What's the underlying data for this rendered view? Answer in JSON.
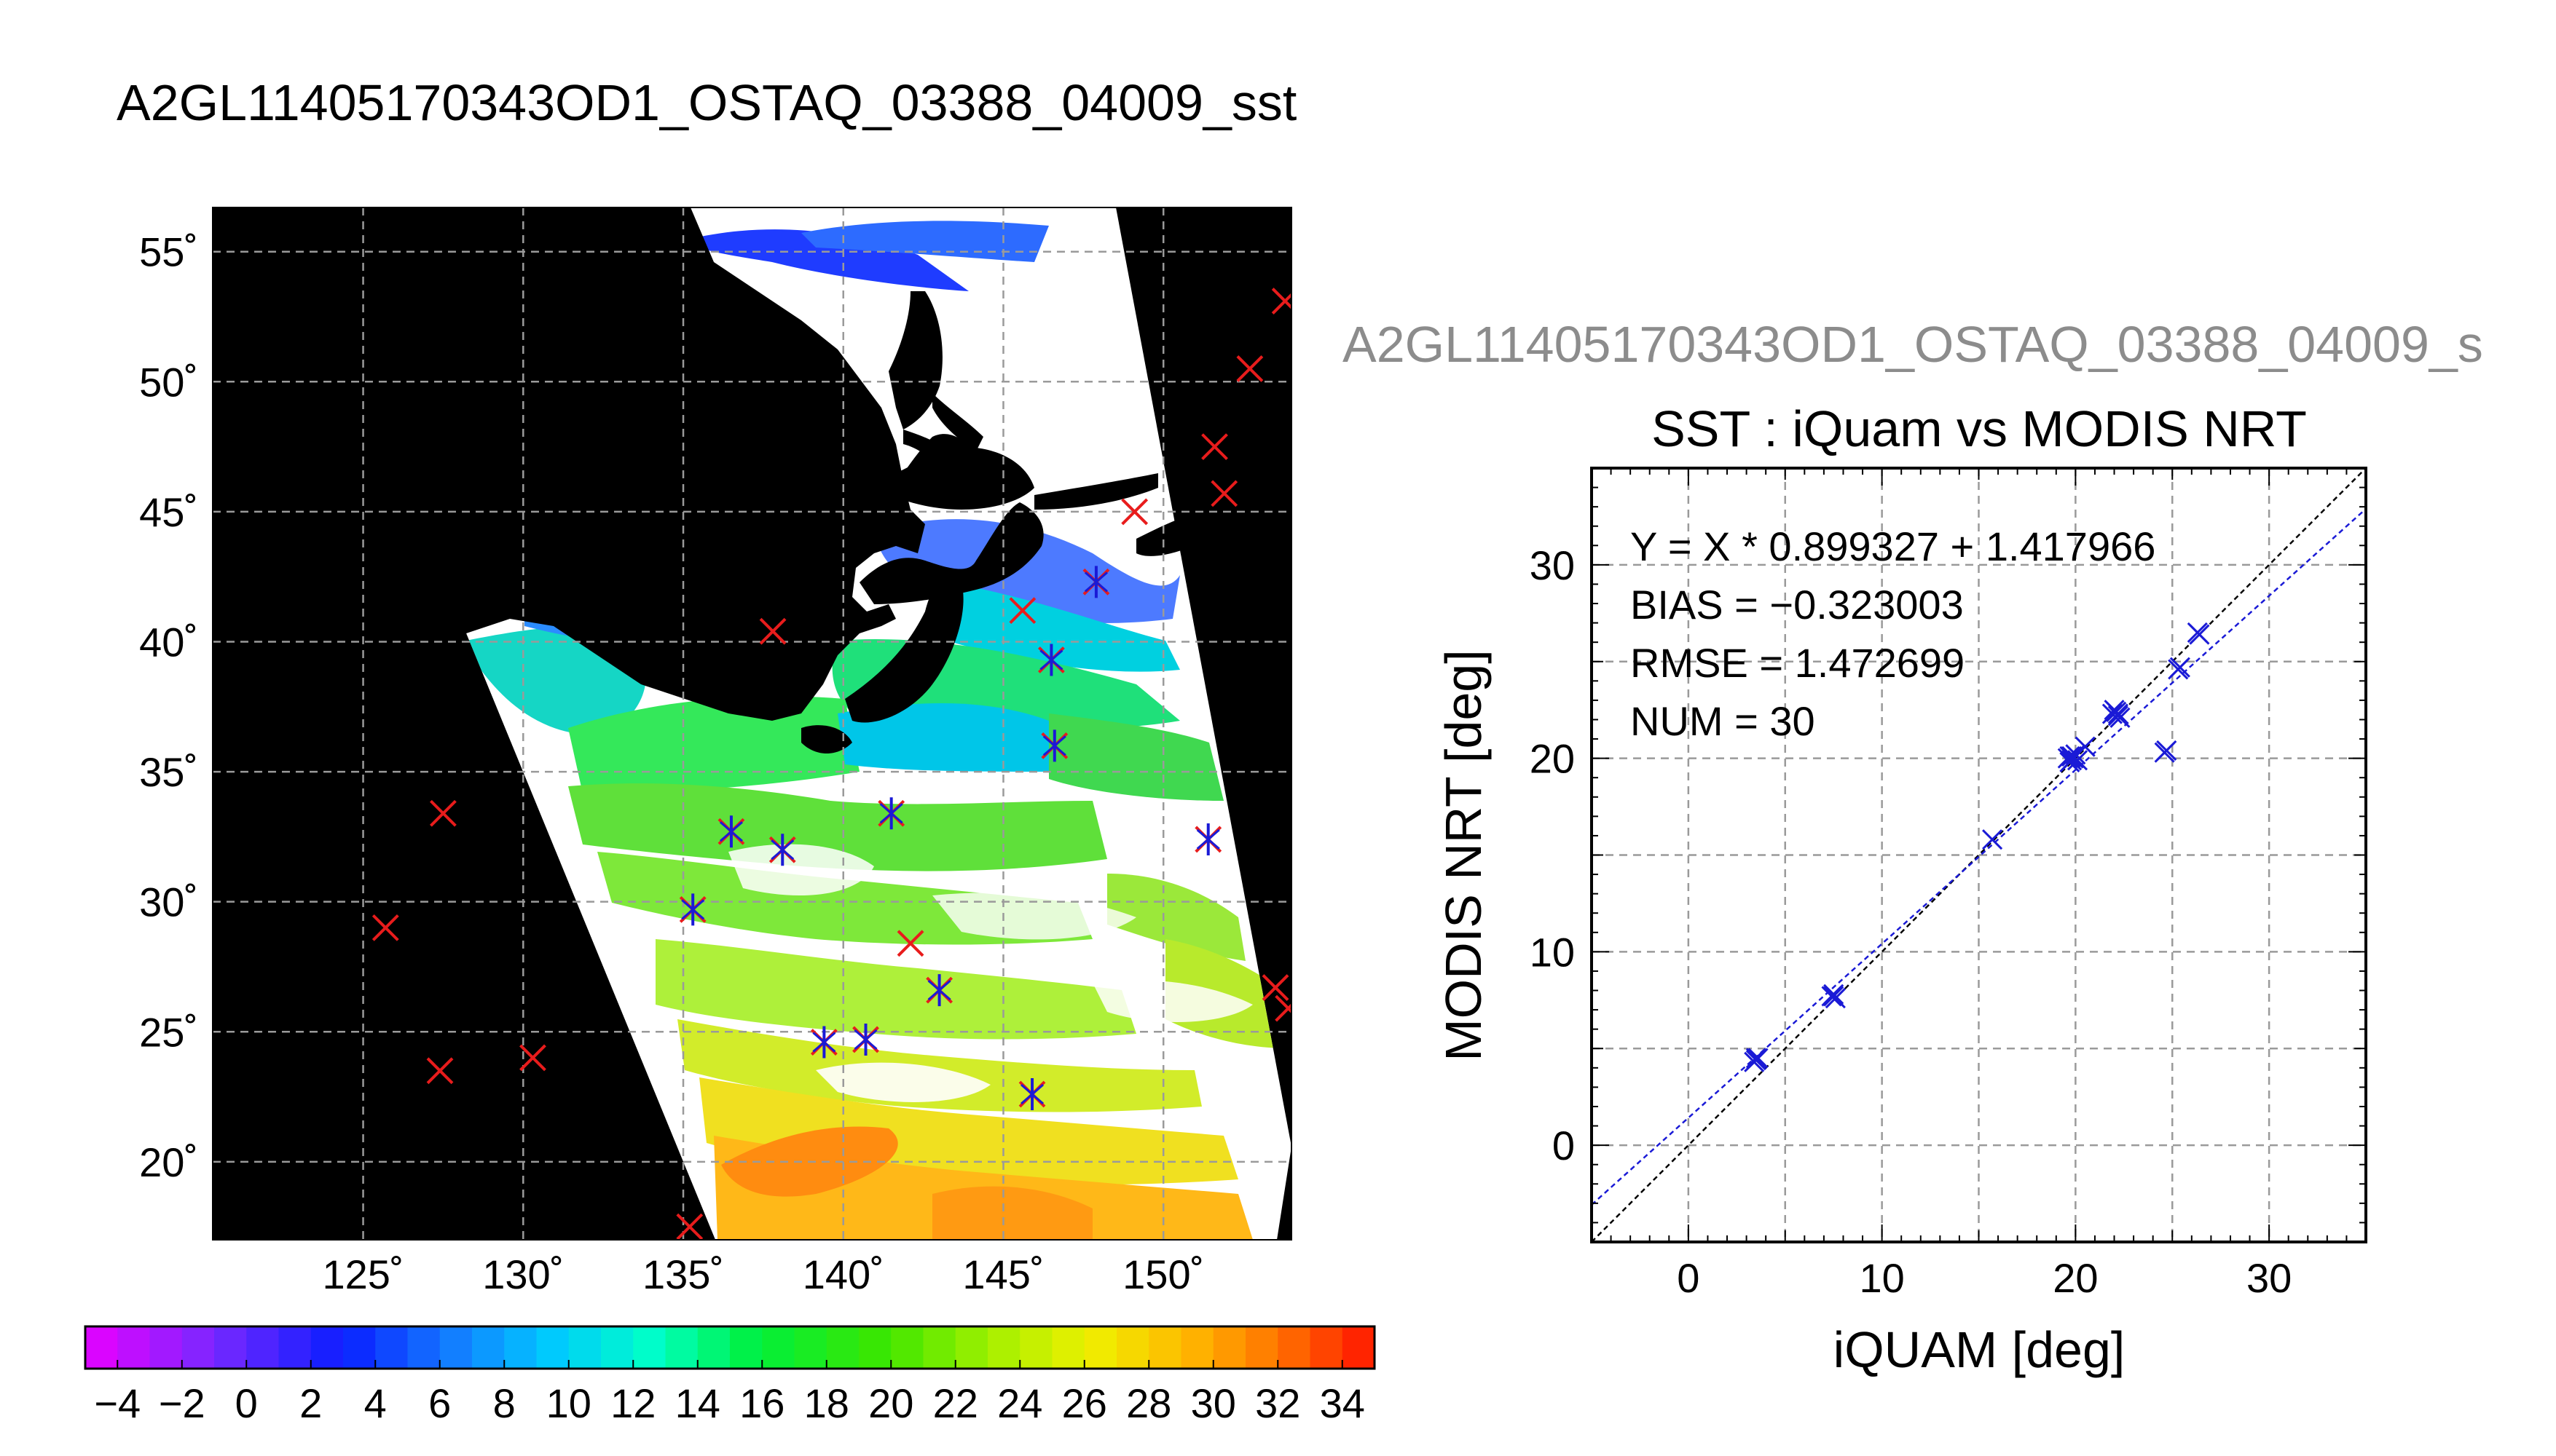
{
  "figure": {
    "title": "A2GL11405170343OD1_OSTAQ_03388_04009_sst",
    "subtitle_partial": "A2GL11405170343OD1_OSTAQ_03388_04009_s"
  },
  "colors": {
    "background": "#ffffff",
    "map_background": "#000000",
    "grid": "#9a9a9a",
    "marker_red": "#e81c1c",
    "marker_blue": "#1a1ad6",
    "fit_line": "#1a1ad6",
    "identity_line": "#000000",
    "subtitle_gray": "#8c8c8c"
  },
  "chart_data": [
    {
      "type": "map",
      "title": "",
      "lon_ticks": [
        "125˚",
        "130˚",
        "135˚",
        "140˚",
        "145˚",
        "150˚"
      ],
      "lat_ticks": [
        "20˚",
        "25˚",
        "30˚",
        "35˚",
        "40˚",
        "45˚",
        "50˚",
        "55˚"
      ],
      "lon_range": [
        120.3,
        154.0
      ],
      "lat_range": [
        17.0,
        56.7
      ],
      "grid": true,
      "iquam_only": [
        [
          125.7,
          29.0
        ],
        [
          127.5,
          33.4
        ],
        [
          127.4,
          23.5
        ],
        [
          130.3,
          24.0
        ],
        [
          135.2,
          17.5
        ],
        [
          137.8,
          40.4
        ],
        [
          142.1,
          28.4
        ],
        [
          145.6,
          41.2
        ],
        [
          149.1,
          45.0
        ],
        [
          151.6,
          47.5
        ],
        [
          151.9,
          45.7
        ],
        [
          152.7,
          50.5
        ],
        [
          153.8,
          53.1
        ],
        [
          153.5,
          26.7
        ],
        [
          153.9,
          25.9
        ]
      ],
      "matchups": [
        [
          135.3,
          29.7
        ],
        [
          136.5,
          32.7
        ],
        [
          138.1,
          32.0
        ],
        [
          139.4,
          24.6
        ],
        [
          140.7,
          24.7
        ],
        [
          141.5,
          33.4
        ],
        [
          143.0,
          26.6
        ],
        [
          145.9,
          22.6
        ],
        [
          146.5,
          39.3
        ],
        [
          146.6,
          36.0
        ],
        [
          147.9,
          42.3
        ],
        [
          151.4,
          32.4
        ]
      ]
    },
    {
      "type": "colorbar",
      "ticks": [
        "−4",
        "−2",
        "0",
        "2",
        "4",
        "6",
        "8",
        "10",
        "12",
        "14",
        "16",
        "18",
        "20",
        "22",
        "24",
        "26",
        "28",
        "30",
        "32",
        "34"
      ],
      "range": [
        -5,
        35
      ],
      "step": 2
    },
    {
      "type": "scatter",
      "title": "SST : iQuam vs MODIS NRT",
      "xlabel": "iQUAM [deg]",
      "ylabel": "MODIS NRT [deg]",
      "xlim": [
        -5,
        35
      ],
      "ylim": [
        -5,
        35
      ],
      "xticks": [
        "0",
        "10",
        "20",
        "30"
      ],
      "yticks": [
        "0",
        "10",
        "20",
        "30"
      ],
      "grid": true,
      "stats": [
        "Y = X * 0.899327 + 1.417966",
        "BIAS = −0.323003",
        "RMSE = 1.472699",
        "NUM = 30"
      ],
      "fit": {
        "slope": 0.899327,
        "intercept": 1.417966
      },
      "points": [
        [
          3.5,
          4.4
        ],
        [
          3.6,
          4.5
        ],
        [
          3.4,
          4.3
        ],
        [
          7.5,
          7.8
        ],
        [
          7.6,
          7.6
        ],
        [
          7.4,
          7.7
        ],
        [
          15.7,
          15.8
        ],
        [
          19.6,
          20.0
        ],
        [
          19.7,
          20.1
        ],
        [
          19.8,
          19.9
        ],
        [
          19.9,
          20.0
        ],
        [
          20.0,
          20.2
        ],
        [
          19.7,
          19.8
        ],
        [
          20.1,
          19.9
        ],
        [
          20.5,
          20.6
        ],
        [
          22.0,
          22.5
        ],
        [
          22.2,
          22.2
        ],
        [
          22.3,
          22.1
        ],
        [
          22.1,
          22.4
        ],
        [
          21.9,
          22.3
        ],
        [
          24.6,
          20.3
        ],
        [
          24.7,
          20.4
        ],
        [
          25.3,
          24.6
        ],
        [
          25.4,
          24.7
        ],
        [
          26.3,
          26.5
        ],
        [
          26.4,
          26.4
        ],
        [
          19.8,
          20.1
        ],
        [
          22.2,
          22.3
        ],
        [
          3.5,
          4.5
        ],
        [
          7.5,
          7.7
        ]
      ]
    }
  ]
}
